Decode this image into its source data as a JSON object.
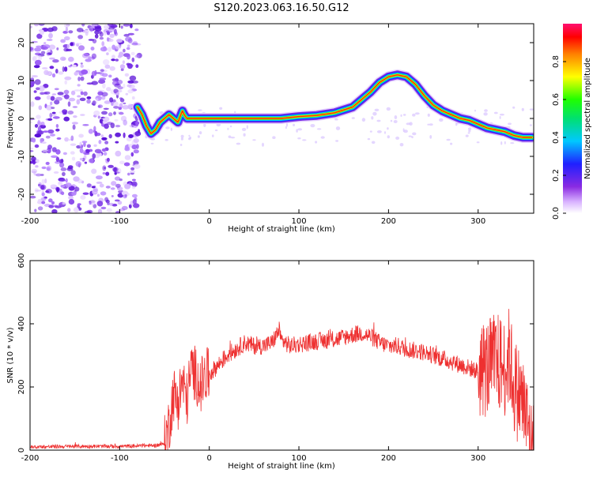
{
  "title": "S120.2023.063.16.50.G12",
  "colors": {
    "snr_line": "#ee3030",
    "spectro_bg": "#ffffff",
    "axis": "#000000"
  },
  "chart_data": [
    {
      "type": "heatmap",
      "name": "spectrogram",
      "xlabel": "Height of straight line (km)",
      "ylabel": "Frequency (Hz)",
      "xlim": [
        -200,
        362
      ],
      "ylim": [
        -25,
        25
      ],
      "x_ticks": [
        "-200",
        "-100",
        "0",
        "100",
        "200",
        "300"
      ],
      "x_tick_values": [
        -200,
        -100,
        0,
        100,
        200,
        300
      ],
      "y_ticks": [
        "20",
        "10",
        "0",
        "-10",
        "-20"
      ],
      "y_tick_values": [
        20,
        10,
        0,
        -10,
        -20
      ],
      "noise_region_x": [
        -200,
        -78
      ],
      "ridge": {
        "x": [
          -80,
          -75,
          -70,
          -65,
          -60,
          -55,
          -50,
          -45,
          -40,
          -35,
          -30,
          -28,
          -25,
          -20,
          0,
          20,
          40,
          60,
          80,
          100,
          120,
          140,
          160,
          170,
          180,
          190,
          200,
          210,
          220,
          230,
          240,
          250,
          260,
          270,
          280,
          290,
          300,
          310,
          320,
          330,
          340,
          350,
          360
        ],
        "freq": [
          3,
          1,
          -2,
          -4,
          -3,
          -1,
          0,
          1,
          0,
          -1,
          2,
          1,
          0,
          0,
          0,
          0,
          0,
          0,
          0,
          0.5,
          0.8,
          1.5,
          3,
          5,
          7,
          9.5,
          11,
          11.5,
          11,
          9,
          6,
          3.5,
          2,
          1,
          0,
          -0.5,
          -1.5,
          -2.5,
          -3,
          -3.5,
          -4.5,
          -5,
          -5
        ]
      },
      "colorbar": {
        "label": "Normalized spectral amplitude",
        "ticks": [
          "0.0",
          "0.2",
          "0.4",
          "0.6",
          "0.8"
        ],
        "tick_values": [
          0.0,
          0.2,
          0.4,
          0.6,
          0.8
        ],
        "range": [
          0,
          1
        ],
        "colormap": "hsv-rainbow"
      }
    },
    {
      "type": "line",
      "name": "snr",
      "xlabel": "Height of straight line (km)",
      "ylabel": "SNR (10 * v/v)",
      "xlim": [
        -200,
        362
      ],
      "ylim": [
        0,
        600
      ],
      "x_ticks": [
        "-200",
        "-100",
        "0",
        "100",
        "200",
        "300"
      ],
      "x_tick_values": [
        -200,
        -100,
        0,
        100,
        200,
        300
      ],
      "y_ticks": [
        "0",
        "200",
        "400",
        "600"
      ],
      "y_tick_values": [
        0,
        200,
        400,
        600
      ],
      "series": [
        {
          "x": [
            -200,
            -150,
            -100,
            -60,
            -50,
            -45,
            -40,
            -35,
            -30,
            -25,
            -20,
            -15,
            -10,
            -5,
            0,
            10,
            20,
            30,
            40,
            50,
            60,
            70,
            78,
            80,
            90,
            100,
            120,
            140,
            160,
            170,
            180,
            190,
            200,
            210,
            220,
            240,
            260,
            280,
            300,
            310,
            320,
            330,
            335,
            340,
            345,
            350,
            355,
            360
          ],
          "values": [
            10,
            12,
            12,
            15,
            20,
            80,
            180,
            150,
            220,
            160,
            260,
            240,
            200,
            230,
            240,
            270,
            300,
            320,
            340,
            330,
            330,
            340,
            380,
            350,
            330,
            335,
            345,
            350,
            365,
            370,
            360,
            340,
            330,
            330,
            320,
            310,
            290,
            270,
            250,
            260,
            280,
            260,
            300,
            200,
            180,
            150,
            80,
            0
          ]
        }
      ]
    }
  ]
}
